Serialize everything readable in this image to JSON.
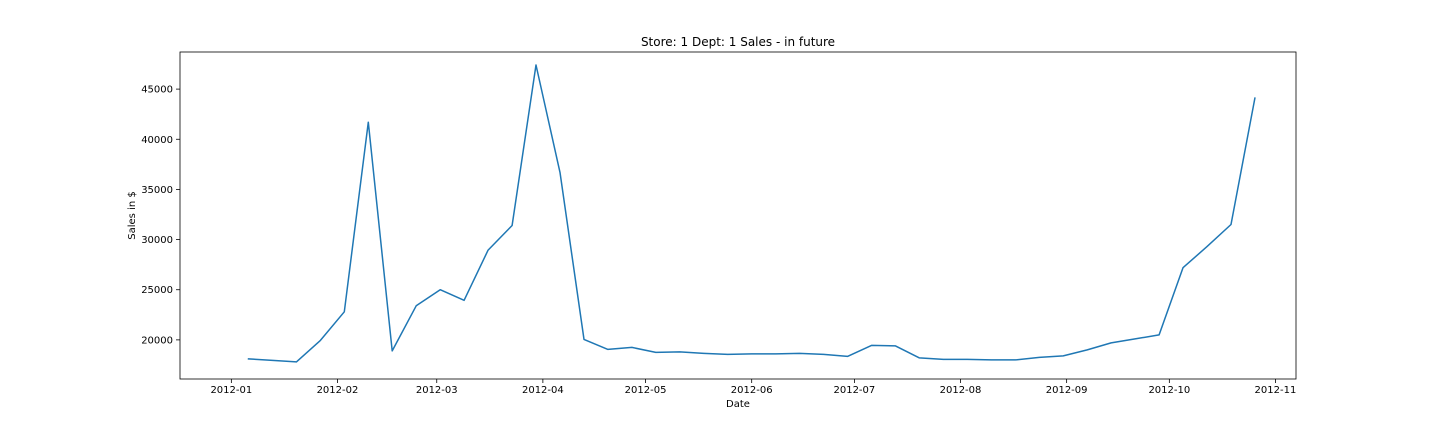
{
  "chart_data": {
    "type": "line",
    "title": "Store: 1 Dept: 1 Sales - in future",
    "xlabel": "Date",
    "ylabel": "Sales in $",
    "x_range": [
      "2011-12-17",
      "2012-11-07"
    ],
    "ylim": [
      16100,
      48700
    ],
    "grid": false,
    "x_ticks": [
      {
        "date": "2012-01-01",
        "label": "2012-01"
      },
      {
        "date": "2012-02-01",
        "label": "2012-02"
      },
      {
        "date": "2012-03-01",
        "label": "2012-03"
      },
      {
        "date": "2012-04-01",
        "label": "2012-04"
      },
      {
        "date": "2012-05-01",
        "label": "2012-05"
      },
      {
        "date": "2012-06-01",
        "label": "2012-06"
      },
      {
        "date": "2012-07-01",
        "label": "2012-07"
      },
      {
        "date": "2012-08-01",
        "label": "2012-08"
      },
      {
        "date": "2012-09-01",
        "label": "2012-09"
      },
      {
        "date": "2012-10-01",
        "label": "2012-10"
      },
      {
        "date": "2012-11-01",
        "label": "2012-11"
      }
    ],
    "y_ticks": [
      20000,
      25000,
      30000,
      35000,
      40000,
      45000
    ],
    "series": [
      {
        "color": "#1f77b4",
        "x": [
          "2012-01-06",
          "2012-01-13",
          "2012-01-20",
          "2012-01-27",
          "2012-02-03",
          "2012-02-10",
          "2012-02-17",
          "2012-02-24",
          "2012-03-02",
          "2012-03-09",
          "2012-03-16",
          "2012-03-23",
          "2012-03-30",
          "2012-04-06",
          "2012-04-13",
          "2012-04-20",
          "2012-04-27",
          "2012-05-04",
          "2012-05-11",
          "2012-05-18",
          "2012-05-25",
          "2012-06-01",
          "2012-06-08",
          "2012-06-15",
          "2012-06-22",
          "2012-06-29",
          "2012-07-06",
          "2012-07-13",
          "2012-07-20",
          "2012-07-27",
          "2012-08-03",
          "2012-08-10",
          "2012-08-17",
          "2012-08-24",
          "2012-08-31",
          "2012-09-07",
          "2012-09-14",
          "2012-09-21",
          "2012-09-28",
          "2012-10-05",
          "2012-10-12",
          "2012-10-19",
          "2012-10-26"
        ],
        "values": [
          18100,
          17950,
          17800,
          19950,
          22800,
          41700,
          18900,
          23400,
          25000,
          23950,
          28950,
          31400,
          47400,
          36700,
          20050,
          19050,
          19250,
          18750,
          18800,
          18650,
          18550,
          18600,
          18600,
          18650,
          18550,
          18350,
          19450,
          19400,
          18200,
          18050,
          18050,
          18000,
          18000,
          18250,
          18400,
          19000,
          19700,
          20100,
          20500,
          27200,
          29300,
          31500,
          44100
        ]
      }
    ]
  }
}
